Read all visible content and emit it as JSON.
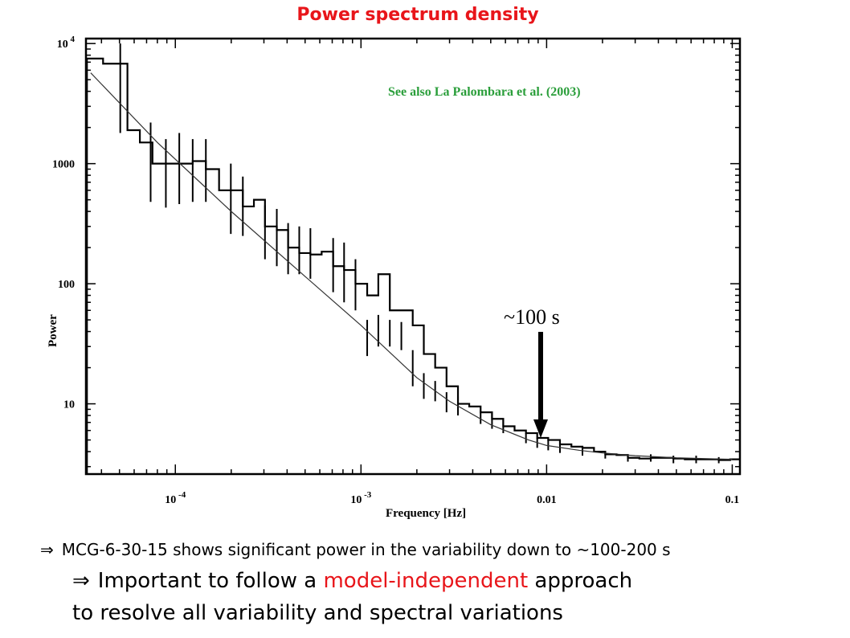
{
  "title": "Power spectrum density",
  "annotation_reference": "See also La Palombara et al. (2003)",
  "annotation_arrow": "~100 s",
  "bullets": {
    "symbol": "⇒",
    "line1": "MCG-6-30-15 shows significant power in the variability down to ~100-200 s",
    "line2_pre": "Important to follow a ",
    "line2_highlight": "model-independent",
    "line2_post": " approach",
    "line3": "to resolve all variability and spectral variations"
  },
  "colors": {
    "title": "#e8151a",
    "reference": "#2a9e3a",
    "highlight": "#e8151a",
    "line": "#000000"
  },
  "chart_data": {
    "type": "line",
    "title": "Power spectrum density",
    "xlabel": "Frequency [Hz]",
    "ylabel": "Power",
    "x_scale": "log",
    "y_scale": "log",
    "xlim": [
      3.3e-05,
      0.11
    ],
    "ylim": [
      2.6,
      11000
    ],
    "xticks": [
      {
        "v": 0.0001,
        "base": "10",
        "exp": "-4"
      },
      {
        "v": 0.001,
        "base": "10",
        "exp": "-3"
      },
      {
        "v": 0.01,
        "base": "0.01",
        "exp": ""
      },
      {
        "v": 0.1,
        "base": "0.1",
        "exp": ""
      }
    ],
    "yticks": [
      {
        "v": 10,
        "base": "10",
        "exp": ""
      },
      {
        "v": 100,
        "base": "100",
        "exp": ""
      },
      {
        "v": 1000,
        "base": "1000",
        "exp": ""
      },
      {
        "v": 10000,
        "base": "10",
        "exp": "4"
      }
    ],
    "series": [
      {
        "style": "step",
        "x": [
          3.34e-05,
          3.61e-05,
          4.08e-05,
          4.72e-05,
          5.52e-05,
          6.44e-05,
          7.53e-05,
          8.89e-05,
          0.000105,
          0.000124,
          0.000146,
          0.000172,
          0.000199,
          0.000231,
          0.000265,
          0.000304,
          0.000352,
          0.000405,
          0.000465,
          0.000534,
          0.000614,
          0.000708,
          0.000811,
          0.000934,
          0.00108,
          0.00124,
          0.00143,
          0.00165,
          0.0019,
          0.00218,
          0.00251,
          0.00289,
          0.00333,
          0.00383,
          0.00441,
          0.00508,
          0.00584,
          0.00672,
          0.00774,
          0.0089,
          0.0102,
          0.0118,
          0.0136,
          0.0156,
          0.018,
          0.0207,
          0.0238,
          0.0274,
          0.0316,
          0.0364,
          0.0418,
          0.0482,
          0.0555,
          0.0639,
          0.0735,
          0.0846,
          0.0974
        ],
        "y": [
          7500,
          7500,
          6800,
          6800,
          1900,
          1500,
          1000,
          1000,
          1000,
          1050,
          900,
          600,
          600,
          440,
          500,
          300,
          280,
          200,
          180,
          175,
          185,
          140,
          130,
          100,
          80,
          120,
          60,
          60,
          45,
          26,
          20,
          14,
          10,
          9.5,
          8.5,
          7.5,
          6.5,
          6.0,
          5.7,
          5.2,
          5.0,
          4.6,
          4.4,
          4.3,
          4.0,
          3.8,
          3.75,
          3.55,
          3.5,
          3.55,
          3.55,
          3.5,
          3.45,
          3.45,
          3.45,
          3.4,
          3.45
        ]
      },
      {
        "style": "line",
        "x": [
          3.5e-05,
          8e-05,
          0.0002,
          0.0005,
          0.001,
          0.002,
          0.003,
          0.005,
          0.008,
          0.01,
          0.015,
          0.02,
          0.03,
          0.05,
          0.1
        ],
        "y": [
          5700,
          1500,
          400,
          115,
          45,
          16.5,
          10.5,
          6.7,
          5.0,
          4.5,
          4.1,
          3.9,
          3.7,
          3.55,
          3.45
        ]
      }
    ],
    "error_bars": [
      {
        "x": 5.05e-05,
        "lo": 1800,
        "hi": 10000
      },
      {
        "x": 7.36e-05,
        "lo": 480,
        "hi": 2200
      },
      {
        "x": 8.89e-05,
        "lo": 430,
        "hi": 1600
      },
      {
        "x": 0.000105,
        "lo": 460,
        "hi": 1800
      },
      {
        "x": 0.000124,
        "lo": 480,
        "hi": 1600
      },
      {
        "x": 0.000146,
        "lo": 480,
        "hi": 1600
      },
      {
        "x": 0.000199,
        "lo": 260,
        "hi": 1000
      },
      {
        "x": 0.000231,
        "lo": 250,
        "hi": 780
      },
      {
        "x": 0.000304,
        "lo": 160,
        "hi": 450
      },
      {
        "x": 0.000352,
        "lo": 140,
        "hi": 420
      },
      {
        "x": 0.000405,
        "lo": 120,
        "hi": 320
      },
      {
        "x": 0.000465,
        "lo": 120,
        "hi": 300
      },
      {
        "x": 0.000534,
        "lo": 110,
        "hi": 290
      },
      {
        "x": 0.000708,
        "lo": 85,
        "hi": 240
      },
      {
        "x": 0.000811,
        "lo": 70,
        "hi": 220
      },
      {
        "x": 0.000934,
        "lo": 60,
        "hi": 160
      },
      {
        "x": 0.00108,
        "lo": 25,
        "hi": 50
      },
      {
        "x": 0.00124,
        "lo": 30,
        "hi": 55
      },
      {
        "x": 0.00143,
        "lo": 30,
        "hi": 50
      },
      {
        "x": 0.00165,
        "lo": 28,
        "hi": 48
      },
      {
        "x": 0.0019,
        "lo": 14,
        "hi": 28
      },
      {
        "x": 0.00218,
        "lo": 11,
        "hi": 18
      },
      {
        "x": 0.00251,
        "lo": 10.5,
        "hi": 15.5
      },
      {
        "x": 0.00289,
        "lo": 8.5,
        "hi": 12.5
      },
      {
        "x": 0.00333,
        "lo": 8,
        "hi": 11.5
      },
      {
        "x": 0.00441,
        "lo": 6.8,
        "hi": 8.8
      },
      {
        "x": 0.00508,
        "lo": 6.2,
        "hi": 8.2
      },
      {
        "x": 0.00584,
        "lo": 5.7,
        "hi": 7.3
      },
      {
        "x": 0.00774,
        "lo": 4.7,
        "hi": 5.7
      },
      {
        "x": 0.0089,
        "lo": 4.3,
        "hi": 5.2
      },
      {
        "x": 0.0102,
        "lo": 4.1,
        "hi": 5.0
      },
      {
        "x": 0.0118,
        "lo": 3.9,
        "hi": 4.7
      },
      {
        "x": 0.0156,
        "lo": 3.7,
        "hi": 4.3
      },
      {
        "x": 0.0207,
        "lo": 3.5,
        "hi": 4.0
      },
      {
        "x": 0.0274,
        "lo": 3.3,
        "hi": 3.8
      },
      {
        "x": 0.0364,
        "lo": 3.3,
        "hi": 3.8
      },
      {
        "x": 0.0482,
        "lo": 3.2,
        "hi": 3.7
      },
      {
        "x": 0.0639,
        "lo": 3.2,
        "hi": 3.7
      },
      {
        "x": 0.0846,
        "lo": 3.2,
        "hi": 3.6
      }
    ],
    "annotations": [
      {
        "text": "See also La Palombara et al. (2003)"
      },
      {
        "text": "~100 s",
        "arrow_x": 0.01
      }
    ],
    "grid": false
  }
}
